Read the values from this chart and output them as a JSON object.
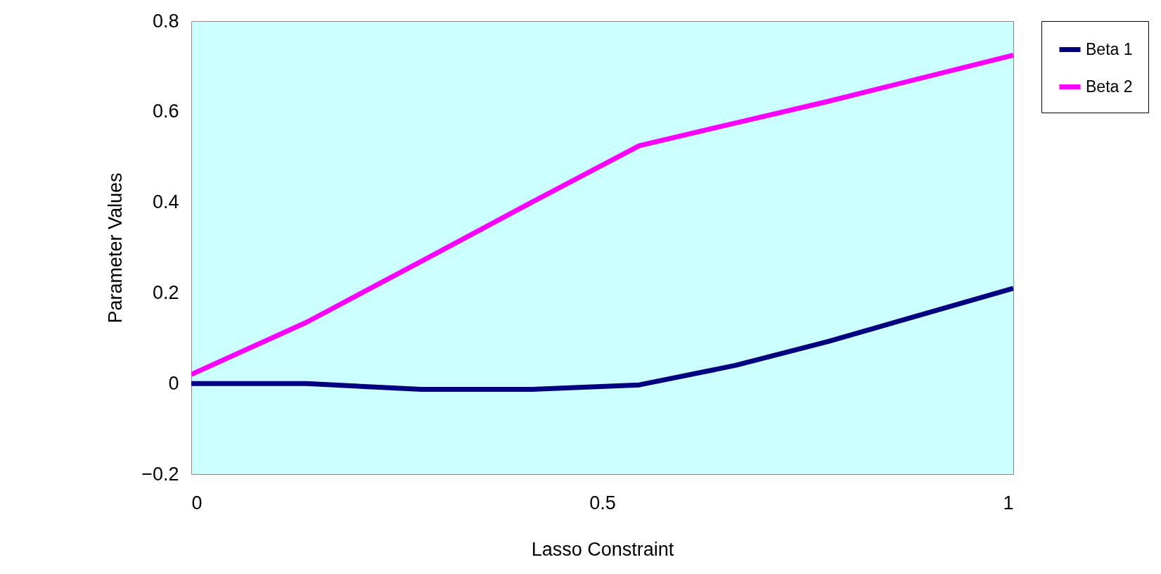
{
  "chart_data": {
    "type": "line",
    "xlabel": "Lasso Constraint",
    "ylabel": "Parameter Values",
    "xlim": [
      0,
      1
    ],
    "xticks": [
      0,
      0.5,
      1
    ],
    "ylim": [
      -0.2,
      0.8
    ],
    "yticks": [
      -0.2,
      0,
      0.2,
      0.4,
      0.6,
      0.8
    ],
    "x": [
      0,
      0.14,
      0.28,
      0.414,
      0.545,
      0.662,
      0.775,
      1
    ],
    "series": [
      {
        "name": "Beta 1",
        "color": "#000080",
        "values": [
          0,
          0,
          -0.013,
          -0.013,
          -0.003,
          0.04,
          0.093,
          0.21
        ]
      },
      {
        "name": "Beta 2",
        "color": "#ff00ff",
        "values": [
          0.02,
          0.135,
          0.27,
          0.4,
          0.525,
          0.575,
          0.623,
          0.725
        ]
      }
    ],
    "grid": false,
    "legend": "right",
    "marker": "none",
    "line_style": "solid"
  }
}
